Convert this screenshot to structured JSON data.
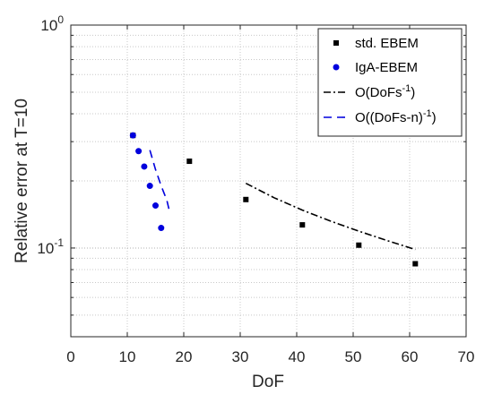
{
  "chart_data": {
    "type": "scatter",
    "xlabel": "DoF",
    "ylabel": "Relative error at T=10",
    "xlim": [
      0,
      70
    ],
    "ylim": [
      0.04,
      1
    ],
    "yscale": "log",
    "grid": "on (major and minor)",
    "legend_position": "top-right",
    "x_ticks": [
      0,
      10,
      20,
      30,
      40,
      50,
      60,
      70
    ],
    "y_ticks": [
      {
        "value": 0.1,
        "base": "10",
        "exp": "-1"
      },
      {
        "value": 1,
        "base": "10",
        "exp": "0"
      }
    ],
    "series": [
      {
        "name": "std. EBEM",
        "marker": "square",
        "color": "#000000",
        "x": [
          11,
          21,
          31,
          41,
          51,
          61
        ],
        "y": [
          0.32,
          0.245,
          0.165,
          0.127,
          0.103,
          0.085
        ]
      },
      {
        "name": "IgA-EBEM",
        "marker": "circle",
        "color": "#0000dd",
        "x": [
          11,
          12,
          13,
          14,
          15,
          16
        ],
        "y": [
          0.32,
          0.272,
          0.232,
          0.19,
          0.155,
          0.123
        ]
      },
      {
        "name": "O(DoFs",
        "name_sup": "-1",
        "name_end": ")",
        "line": "dash-dot",
        "color": "#000000",
        "x": [
          31,
          36,
          41,
          46,
          51,
          56,
          61
        ],
        "y": [
          0.195,
          0.168,
          0.148,
          0.132,
          0.119,
          0.108,
          0.0985
        ]
      },
      {
        "name": "O((DoFs-n)",
        "name_sup": "-1",
        "name_end": ")",
        "line": "dashed",
        "color": "#0000dd",
        "x": [
          14,
          15,
          16,
          17,
          17.5
        ],
        "y": [
          0.275,
          0.225,
          0.19,
          0.164,
          0.145
        ]
      }
    ]
  }
}
